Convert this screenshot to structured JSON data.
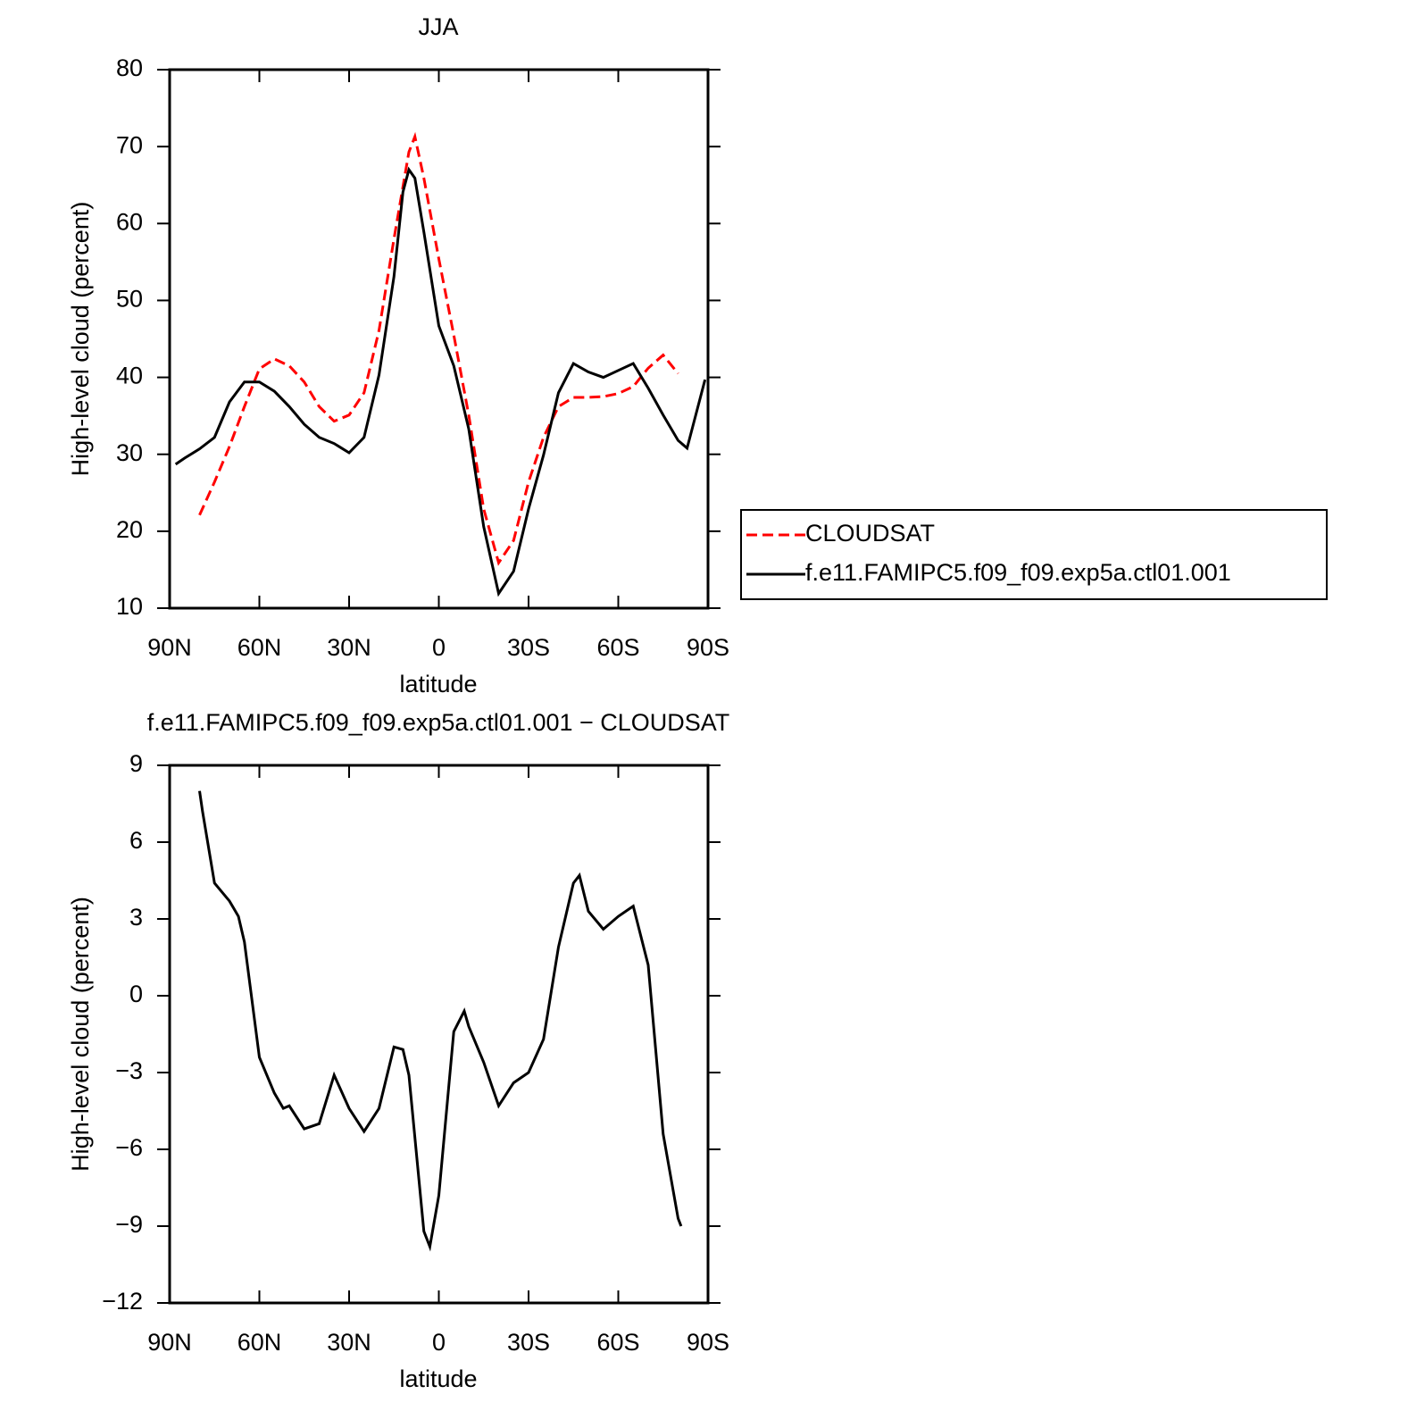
{
  "chart_data": [
    {
      "type": "line",
      "title": "JJA",
      "xlabel": "latitude",
      "ylabel": "High-level cloud (percent)",
      "xlim": [
        90,
        -90
      ],
      "xticks": [
        {
          "value": 90,
          "label": "90N"
        },
        {
          "value": 60,
          "label": "60N"
        },
        {
          "value": 30,
          "label": "30N"
        },
        0,
        {
          "value": -30,
          "label": "30S"
        },
        {
          "value": -60,
          "label": "60S"
        },
        {
          "value": -90,
          "label": "90S"
        }
      ],
      "ylim": [
        10,
        80
      ],
      "yticks": [
        10,
        20,
        30,
        40,
        50,
        60,
        70,
        80
      ],
      "legend": "right",
      "series": [
        {
          "name": "CLOUDSAT",
          "color": "#ff0000",
          "dash": true,
          "x": [
            80,
            75,
            70,
            65,
            60,
            55,
            50,
            45,
            40,
            35,
            30,
            25,
            20,
            15,
            10,
            8,
            5,
            0,
            -5,
            -10,
            -15,
            -20,
            -25,
            -30,
            -35,
            -40,
            -45,
            -50,
            -55,
            -60,
            -65,
            -70,
            -75,
            -80
          ],
          "values": [
            22.1,
            26.4,
            31,
            36.2,
            41.1,
            42.4,
            41.5,
            39.4,
            36.2,
            34.3,
            35.1,
            38,
            46.1,
            58,
            69.3,
            71.3,
            65.9,
            55.4,
            45.5,
            35.1,
            22.9,
            15.9,
            18.8,
            26.4,
            32.2,
            36.2,
            37.4,
            37.4,
            37.5,
            37.9,
            38.8,
            41.2,
            42.9,
            40.5
          ]
        },
        {
          "name": "f.e11.FAMIPC5.f09_f09.exp5a.ctl01.001",
          "color": "#000000",
          "dash": false,
          "x": [
            88,
            85,
            80,
            75,
            70,
            65,
            60,
            55,
            50,
            45,
            40,
            35,
            30,
            25,
            20,
            15,
            12,
            10,
            8,
            5,
            0,
            -5,
            -10,
            -15,
            -20,
            -25,
            -30,
            -35,
            -40,
            -45,
            -50,
            -55,
            -60,
            -65,
            -70,
            -75,
            -80,
            -83,
            -89
          ],
          "values": [
            28.7,
            29.5,
            30.7,
            32.2,
            36.8,
            39.4,
            39.4,
            38.2,
            36.2,
            33.9,
            32.2,
            31.4,
            30.2,
            32.2,
            40.3,
            53.1,
            64.1,
            67,
            65.9,
            58.9,
            46.7,
            41.5,
            33.3,
            20.6,
            11.9,
            14.8,
            22.9,
            29.9,
            38,
            41.8,
            40.7,
            40,
            40.9,
            41.8,
            38.6,
            35.1,
            31.8,
            30.8,
            39.7
          ]
        }
      ]
    },
    {
      "type": "line",
      "title": "f.e11.FAMIPC5.f09_f09.exp5a.ctl01.001 − CLOUDSAT",
      "xlabel": "latitude",
      "ylabel": "High-level cloud (percent)",
      "xlim": [
        90,
        -90
      ],
      "xticks": [
        {
          "value": 90,
          "label": "90N"
        },
        {
          "value": 60,
          "label": "60N"
        },
        {
          "value": 30,
          "label": "30N"
        },
        0,
        {
          "value": -30,
          "label": "30S"
        },
        {
          "value": -60,
          "label": "60S"
        },
        {
          "value": -90,
          "label": "90S"
        }
      ],
      "ylim": [
        -12,
        9
      ],
      "yticks": [
        {
          "value": -12,
          "label": "−12"
        },
        {
          "value": -9,
          "label": "−9"
        },
        {
          "value": -6,
          "label": "−6"
        },
        {
          "value": -3,
          "label": "−3"
        },
        0,
        3,
        6,
        9
      ],
      "series": [
        {
          "color": "#000000",
          "dash": false,
          "x": [
            80,
            79,
            75,
            70,
            67,
            65,
            60,
            55,
            52,
            50,
            45,
            40,
            35,
            30,
            25,
            20,
            15,
            12,
            10,
            5,
            3,
            0,
            -5,
            -8.5,
            -10,
            -15,
            -20,
            -25,
            -30,
            -35,
            -40,
            -45,
            -47,
            -50,
            -55,
            -60,
            -65,
            -70,
            -75,
            -80,
            -81
          ],
          "values": [
            8,
            7.2,
            4.4,
            3.7,
            3.1,
            2.1,
            -2.4,
            -3.8,
            -4.4,
            -4.3,
            -5.2,
            -5,
            -3.1,
            -4.4,
            -5.3,
            -4.4,
            -2,
            -2.1,
            -3.1,
            -9.2,
            -9.8,
            -7.8,
            -1.4,
            -0.6,
            -1.2,
            -2.6,
            -4.3,
            -3.4,
            -3,
            -1.7,
            1.9,
            4.4,
            4.7,
            3.3,
            2.6,
            3.1,
            3.5,
            1.2,
            -5.4,
            -8.7,
            -9
          ]
        }
      ]
    }
  ]
}
